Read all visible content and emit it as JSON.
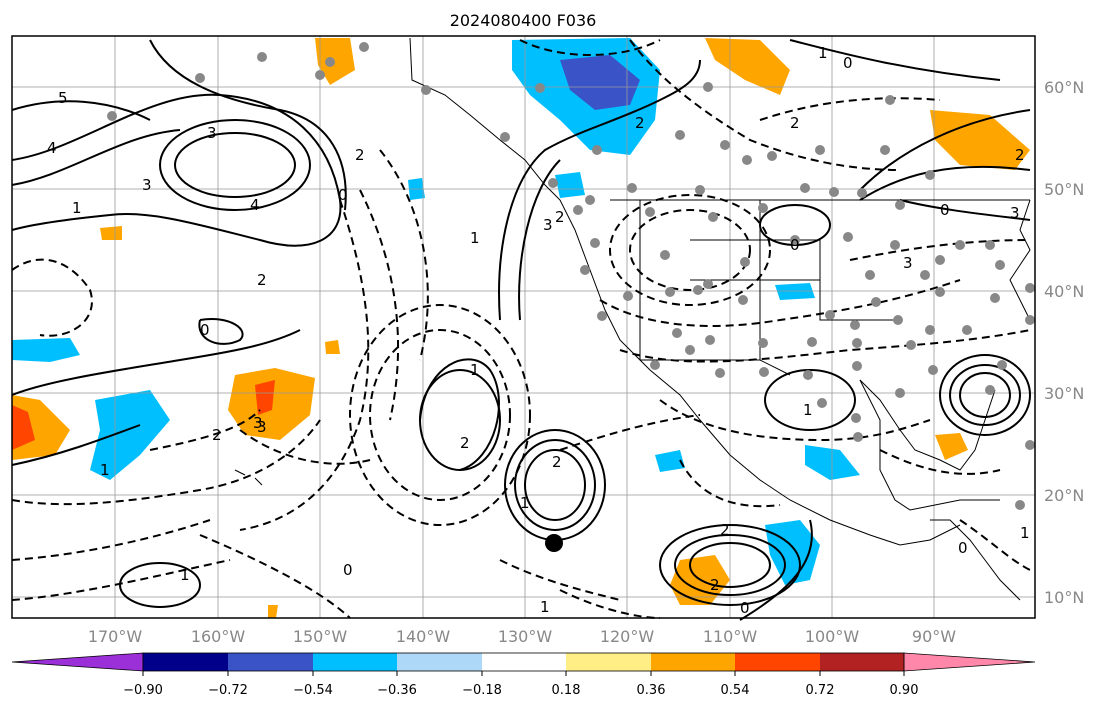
{
  "map": {
    "title": "2024080400 F036",
    "lon_labels": [
      "170°W",
      "160°W",
      "150°W",
      "140°W",
      "130°W",
      "120°W",
      "110°W",
      "100°W",
      "90°W"
    ],
    "lat_labels": [
      "60°N",
      "50°N",
      "40°N",
      "30°N",
      "20°N",
      "10°N"
    ],
    "contour_labels": [
      "5",
      "4",
      "3",
      "1",
      "0",
      "2",
      "3",
      "4",
      "2",
      "0",
      "3",
      "2",
      "1",
      "1",
      "2",
      "3",
      "2",
      "2",
      "1",
      "0",
      "1",
      "2",
      "0",
      "0",
      "1",
      "2",
      "3",
      "1",
      "1",
      "3",
      "0",
      "2",
      "1",
      "2",
      "3",
      "0",
      "1",
      "2",
      "0"
    ],
    "colorbar": {
      "colors": [
        "#9b30d9",
        "#00008b",
        "#3a54c8",
        "#00bfff",
        "#add8f7",
        "#ffffff",
        "#ffed85",
        "#ffa500",
        "#ff4500",
        "#b22222",
        "#ff88aa"
      ],
      "ticks": [
        "−0.90",
        "−0.72",
        "−0.54",
        "−0.36",
        "−0.18",
        "0.18",
        "0.36",
        "0.54",
        "0.72",
        "0.90"
      ]
    },
    "markers": {
      "station_color": "#888888",
      "storm_marker_color": "#000000"
    }
  }
}
